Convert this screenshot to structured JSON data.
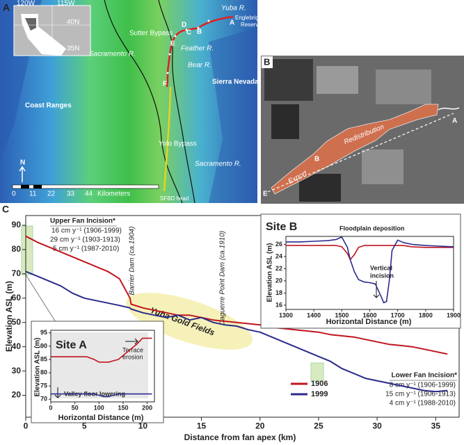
{
  "panel_a": {
    "label": "A",
    "yuba": "Yuba R.",
    "reservoir": [
      "Englebright",
      "Reservoir"
    ],
    "sites": [
      "A",
      "B",
      "C",
      "D",
      "E",
      "F"
    ],
    "sutter": "Sutter Bypass",
    "feather": "Feather R.",
    "bear": "Bear R.",
    "sacramento": [
      "Sacramento R.",
      "Sacramento R."
    ],
    "sierra": "Sierra Nevada",
    "coast": "Coast Ranges",
    "yolo": "Yolo Bypass",
    "sfbd": "SFBD head",
    "inset": [
      "120W",
      "115W",
      "40N",
      "35N"
    ],
    "north": "N",
    "scale": [
      "0",
      "11",
      "22",
      "33",
      "44"
    ],
    "scale_unit": "Kilometers"
  },
  "panel_b": {
    "label": "B",
    "sites": [
      "A",
      "B",
      "E"
    ],
    "redistribution": "Redistribution",
    "export": "Export"
  },
  "panel_c_label": "C",
  "chart_data": [
    {
      "type": "line",
      "xlabel": "Distance from fan apex (km)",
      "ylabel": "Elevation ASL (m)",
      "x": [
        0,
        1,
        2,
        3,
        4,
        5,
        6,
        7,
        8,
        8.9,
        9,
        10,
        11,
        12,
        13,
        14,
        15,
        16,
        17,
        18,
        19,
        20,
        21,
        22,
        23,
        24,
        25,
        26,
        27,
        28,
        29,
        30,
        31,
        32,
        33,
        34,
        35,
        36
      ],
      "series": [
        {
          "name": "1906",
          "color": "#c0141e",
          "values": [
            85.5,
            83,
            81,
            79,
            77,
            75,
            73,
            71,
            68,
            60,
            57.5,
            56,
            55,
            54,
            53,
            53,
            52,
            51,
            50.5,
            50,
            49.5,
            49,
            48,
            47.5,
            47,
            46.5,
            46,
            45,
            44.5,
            44,
            43,
            42,
            41,
            40.5,
            40,
            39,
            38,
            37
          ]
        },
        {
          "name": "1999",
          "color": "#2a2a8c",
          "values": [
            71,
            69,
            67,
            65,
            62,
            60,
            59,
            58,
            57,
            56,
            55.5,
            54,
            53,
            52,
            53,
            51,
            52,
            50,
            49,
            48.5,
            47,
            46,
            44,
            42,
            40,
            38,
            36,
            34,
            31,
            29,
            27,
            26,
            25,
            24,
            23,
            22,
            21.5,
            22
          ]
        }
      ],
      "xlim": [
        0,
        37
      ],
      "ylim": [
        11,
        94
      ],
      "xticks": [
        0,
        5,
        10,
        15,
        20,
        25,
        30,
        35
      ],
      "yticks": [
        20,
        30,
        40,
        50,
        60,
        70,
        80,
        90
      ],
      "annotations": {
        "upper_title": "Upper Fan Incision*",
        "upper_rates": [
          "16 cm y⁻¹ (1906-1999)",
          "29 cm y⁻¹ (1903-1913)",
          "5 cm y⁻¹ (1987-2010)"
        ],
        "barrier": "Barrier Dam (ca.1904)",
        "daguerre": "Daguerre Point Dam (ca.1910)",
        "gold_fields": "Yuba Gold Fields",
        "lower_title": "Lower Fan Incision*",
        "lower_rates": [
          "8 cm y⁻¹ (1906-1999)",
          "15 cm y⁻¹ (1906-1913)",
          "4 cm y⁻¹ (1988-2010)"
        ]
      }
    },
    {
      "type": "line",
      "title": "Site A",
      "xlabel": "Horizontal Distance (m)",
      "ylabel": "Elevation ASL (m)",
      "x": [
        0,
        25,
        50,
        75,
        90,
        100,
        110,
        120,
        130,
        140,
        150,
        160,
        170,
        180,
        190,
        200,
        210
      ],
      "series": [
        {
          "color": "#c0141e",
          "values": [
            86,
            86,
            86,
            86,
            85,
            84,
            84,
            84,
            84.5,
            85,
            86.5,
            88,
            89.5,
            91,
            93,
            93,
            93
          ]
        },
        {
          "color": "#2a2a8c",
          "values": [
            72,
            72,
            72,
            72,
            72,
            71.5,
            71,
            71,
            71.5,
            72,
            72,
            72,
            72,
            72,
            72,
            72,
            72
          ]
        }
      ],
      "xlim": [
        0,
        215
      ],
      "ylim": [
        69,
        96
      ],
      "xticks": [
        0,
        50,
        100,
        150,
        200
      ],
      "yticks": [
        70,
        75,
        80,
        85,
        90,
        95
      ],
      "annotations": {
        "terrace": [
          "Terrace",
          "erosion"
        ],
        "lowering": "Valley-floor lowering"
      }
    },
    {
      "type": "line",
      "title": "Site B",
      "xlabel": "Horizontal Distance (m)",
      "ylabel": "Elevation ASL (m)",
      "x": [
        1300,
        1350,
        1400,
        1450,
        1480,
        1500,
        1520,
        1530,
        1545,
        1560,
        1580,
        1600,
        1620,
        1640,
        1650,
        1660,
        1670,
        1680,
        1700,
        1720,
        1750,
        1800,
        1850,
        1900
      ],
      "series": [
        {
          "color": "#c0141e",
          "values": [
            25.8,
            25.8,
            25.8,
            25.8,
            25.8,
            25.6,
            24.5,
            23.5,
            24.3,
            25.5,
            25.8,
            25.8,
            25.8,
            25.8,
            25.8,
            25.8,
            25.8,
            25.8,
            25.8,
            25.8,
            25.6,
            25.5,
            25.5,
            25.5
          ]
        },
        {
          "color": "#2a2a8c",
          "values": [
            26.4,
            26.4,
            26.5,
            26.6,
            26.8,
            27.2,
            25.5,
            23.5,
            21.5,
            20.2,
            19.8,
            19.7,
            19.5,
            17.5,
            16.4,
            16.6,
            20,
            25,
            26.7,
            26.3,
            26,
            25.8,
            25.7,
            25.6
          ]
        }
      ],
      "xlim": [
        1300,
        1900
      ],
      "ylim": [
        15.3,
        27.3
      ],
      "xticks": [
        1300,
        1400,
        1500,
        1600,
        1700,
        1800,
        1900
      ],
      "yticks": [
        16,
        18,
        20,
        22,
        24,
        26
      ],
      "annotations": {
        "floodplain": "Floodplain deposition",
        "incision": [
          "Vertical",
          "incision"
        ]
      }
    }
  ]
}
